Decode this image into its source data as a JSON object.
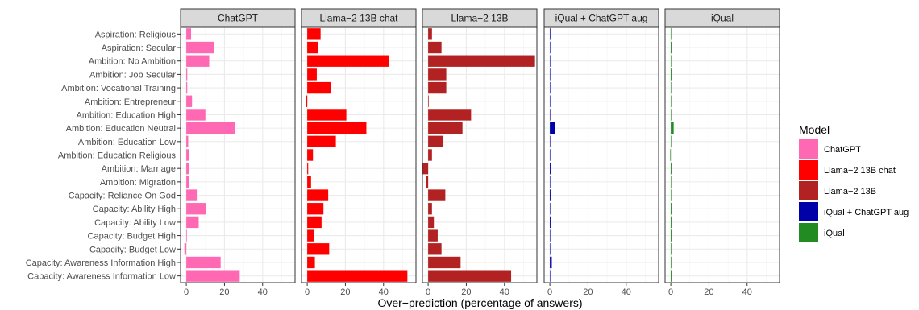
{
  "chart_data": {
    "type": "bar",
    "orientation": "horizontal",
    "xlabel": "Over−prediction (percentage of answers)",
    "ylabel": "",
    "xlim": [
      -3,
      57
    ],
    "xticks": [
      0,
      20,
      40
    ],
    "grid": true,
    "legend_position": "right",
    "legend_title": "Model",
    "categories": [
      "Aspiration: Religious",
      "Aspiration: Secular",
      "Ambition: No Ambition",
      "Ambition: Job Secular",
      "Ambition: Vocational Training",
      "Ambition: Entrepreneur",
      "Ambition: Education High",
      "Ambition: Education Neutral",
      "Ambition: Education Low",
      "Ambition: Education Religious",
      "Ambition: Marriage",
      "Ambition: Migration",
      "Capacity: Reliance On God",
      "Capacity: Ability High",
      "Capacity: Ability Low",
      "Capacity: Budget High",
      "Capacity: Budget Low",
      "Capacity: Awareness Information High",
      "Capacity: Awareness Information Low"
    ],
    "series": [
      {
        "name": "ChatGPT",
        "color": "#ff69b4",
        "values": [
          2.5,
          14.5,
          12,
          0.5,
          0.5,
          3,
          10,
          25.5,
          1,
          1.5,
          1.5,
          1.5,
          5.5,
          10.5,
          6.5,
          0.3,
          -1,
          18,
          28
        ]
      },
      {
        "name": "Llama−2 13B chat",
        "color": "#ff0000",
        "values": [
          7,
          5.5,
          43,
          5,
          12.5,
          -0.5,
          20.5,
          31,
          15,
          3,
          0.5,
          2,
          11,
          8.5,
          7.5,
          3.5,
          11.5,
          4,
          52.5
        ]
      },
      {
        "name": "Llama−2 13B",
        "color": "#b22222",
        "values": [
          2,
          7,
          56,
          9.5,
          9.5,
          0.3,
          22.5,
          18,
          8,
          2,
          -3,
          -1,
          9,
          2,
          3,
          5,
          7,
          17,
          43.5
        ]
      },
      {
        "name": "iQual + ChatGPT aug",
        "color": "#0000a8",
        "values": [
          0.3,
          0.2,
          0.1,
          0.1,
          0.1,
          0.1,
          0.2,
          2.5,
          0.1,
          0.1,
          0.6,
          0.1,
          0.6,
          0.1,
          0.6,
          0.1,
          0.1,
          1,
          0.2
        ]
      },
      {
        "name": "iQual",
        "color": "#228b22",
        "values": [
          0.2,
          0.6,
          0.2,
          0.6,
          0.1,
          0.2,
          0.1,
          1.5,
          0.1,
          -0.3,
          0.5,
          0.1,
          0.2,
          0.6,
          0.6,
          0.6,
          0.3,
          0.3,
          0.6
        ]
      }
    ]
  }
}
